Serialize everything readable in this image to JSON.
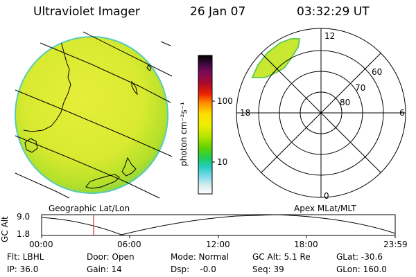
{
  "header": {
    "instrument": "Ultraviolet Imager",
    "date": "26 Jan 07",
    "time": "03:32:29 UT"
  },
  "colorbar": {
    "label": "photon cm⁻²s⁻¹",
    "ticks": [
      "100",
      "10"
    ],
    "colors": [
      "#000000",
      "#3a0a3a",
      "#7a0a5a",
      "#9a0a2a",
      "#cc0000",
      "#ee3300",
      "#ff8800",
      "#ffcc00",
      "#ffee00",
      "#ccee00",
      "#88dd00",
      "#44cc22",
      "#22cc88",
      "#33ccdd",
      "#88ddee",
      "#ddeeee",
      "#f8f8f8"
    ]
  },
  "map_left": {
    "label": "Geographic Lat/Lon"
  },
  "polar_plot": {
    "label": "Apex MLat/MLT",
    "mlt_labels": {
      "top": "12",
      "left": "18",
      "right": "6",
      "bottom": "0"
    },
    "lat_labels": [
      "60",
      "70",
      "80"
    ]
  },
  "altitude_plot": {
    "ylabel": "GC Alt",
    "yticks": [
      "9.0",
      "1.8"
    ],
    "xticks": [
      "00:00",
      "06:00",
      "12:00",
      "18:00",
      "23:59"
    ],
    "marker_time": "03:32",
    "marker_color": "#cc0000"
  },
  "info": {
    "row1": [
      "Flt: LBHL",
      "Door: Open",
      "Mode: Normal",
      "GC Alt: 5.1 Re",
      "GLat: -30.6"
    ],
    "row2": [
      "IP: 36.0",
      "Gain: 14",
      "Dsp:    -0.0",
      "Seq: 39",
      "GLon: 160.0"
    ]
  }
}
